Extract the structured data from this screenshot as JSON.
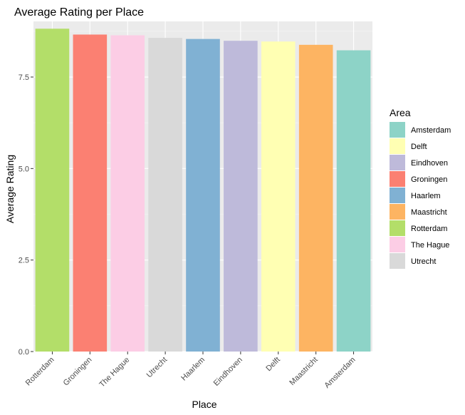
{
  "chart_data": {
    "type": "bar",
    "title": "Average Rating per Place",
    "xlabel": "Place",
    "ylabel": "Average Rating",
    "categories": [
      "Rotterdam",
      "Groningen",
      "The Hague",
      "Utrecht",
      "Haarlem",
      "Eindhoven",
      "Delft",
      "Maastricht",
      "Amsterdam"
    ],
    "values": [
      8.82,
      8.66,
      8.64,
      8.57,
      8.54,
      8.49,
      8.47,
      8.38,
      8.23
    ],
    "ylim": [
      0,
      9.02
    ],
    "yticks": [
      0.0,
      2.5,
      5.0,
      7.5
    ],
    "ytick_labels": [
      "0.0",
      "2.5",
      "5.0",
      "7.5"
    ],
    "grid": true,
    "legend": {
      "title": "Area",
      "position": "right",
      "entries": [
        {
          "label": "Amsterdam",
          "color": "#8DD3C7"
        },
        {
          "label": "Delft",
          "color": "#FFFFB3"
        },
        {
          "label": "Eindhoven",
          "color": "#BEBADA"
        },
        {
          "label": "Groningen",
          "color": "#FB8072"
        },
        {
          "label": "Haarlem",
          "color": "#80B1D3"
        },
        {
          "label": "Maastricht",
          "color": "#FDB462"
        },
        {
          "label": "Rotterdam",
          "color": "#B3DE69"
        },
        {
          "label": "The Hague",
          "color": "#FCCDE5"
        },
        {
          "label": "Utrecht",
          "color": "#D9D9D9"
        }
      ]
    },
    "colors": {
      "panel_background": "#EBEBEB",
      "grid_major": "#FFFFFF",
      "grid_minor": "#F5F5F5",
      "tick_color": "#333333"
    }
  }
}
